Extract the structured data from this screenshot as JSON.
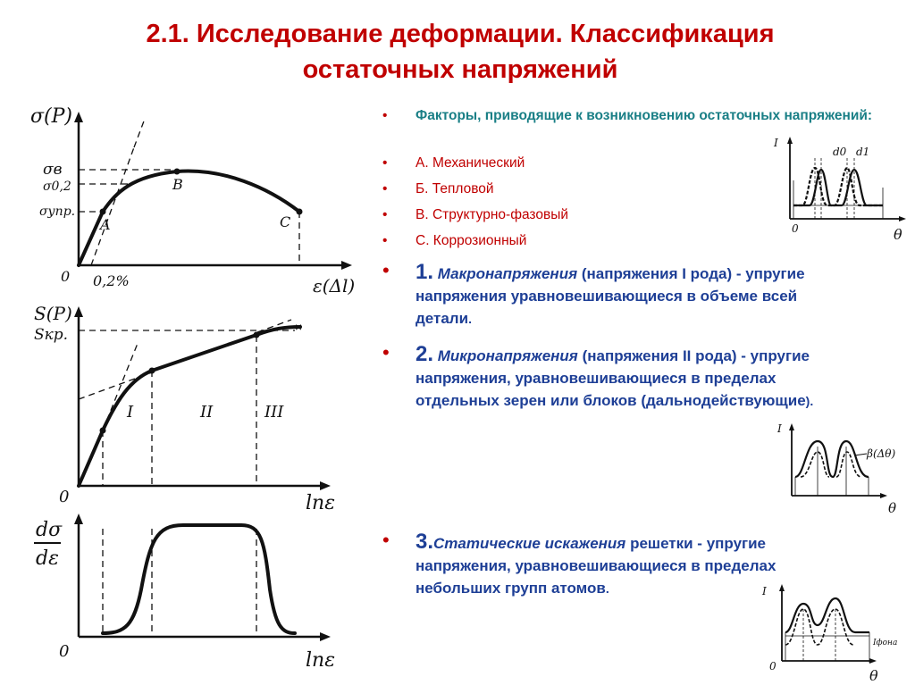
{
  "title": {
    "line1": "2.1. Исследование деформации. Классификация",
    "line2": "остаточных напряжений"
  },
  "chart1": {
    "ylabel": "σ(P)",
    "xlabel": "ε(Δl)",
    "origin": "0",
    "ticks": {
      "sigma_b": "σв",
      "sigma_02": "σ0,2",
      "sigma_upr": "σупр.",
      "x_02": "0,2%"
    },
    "points": {
      "A": "A",
      "B": "B",
      "C": "C"
    }
  },
  "chart2": {
    "ylabel": "S(P)",
    "s_kr": "Sкр.",
    "xlabel": "lnε",
    "origin": "0",
    "stages": [
      "I",
      "II",
      "III"
    ]
  },
  "chart3": {
    "ylabel_num": "dσ",
    "ylabel_den": "dε",
    "xlabel": "lnε",
    "origin": "0"
  },
  "factors": {
    "heading": "Факторы, приводящие к возникновению остаточных напряжений:",
    "items": [
      "А. Механический",
      "Б. Тепловой",
      "В. Структурно-фазовый",
      "С. Коррозионный"
    ]
  },
  "item1": {
    "num": "1.",
    "term": "Макронапряжения",
    "paren": "(напряжения I рода) - упругие",
    "line2": "напряжения уравновешивающиеся в объеме всей",
    "line3": "детали",
    "end": "."
  },
  "item2": {
    "num": "2.",
    "term": "Микронапряжения",
    "paren": "(напряжения II  рода) - упругие",
    "line2": "напряжения, уравновешивающиеся в пределах",
    "line3": "отдельных зерен или блоков (дальнодействующие",
    "end": ")."
  },
  "item3": {
    "num": "3.",
    "term": "Статические искажения",
    "rest": "решетки - упругие",
    "line2": "напряжения, уравновешивающиеся в пределах",
    "line3": "небольших групп атомов",
    "end": "."
  },
  "inset1": {
    "y": "I",
    "x": "θ",
    "origin": "0",
    "d0": "d0",
    "d1": "d1"
  },
  "inset2": {
    "y": "I",
    "x": "θ",
    "beta": "β(Δθ)"
  },
  "inset3": {
    "y": "I",
    "x": "θ",
    "origin": "0",
    "ifona": "Iфона"
  }
}
